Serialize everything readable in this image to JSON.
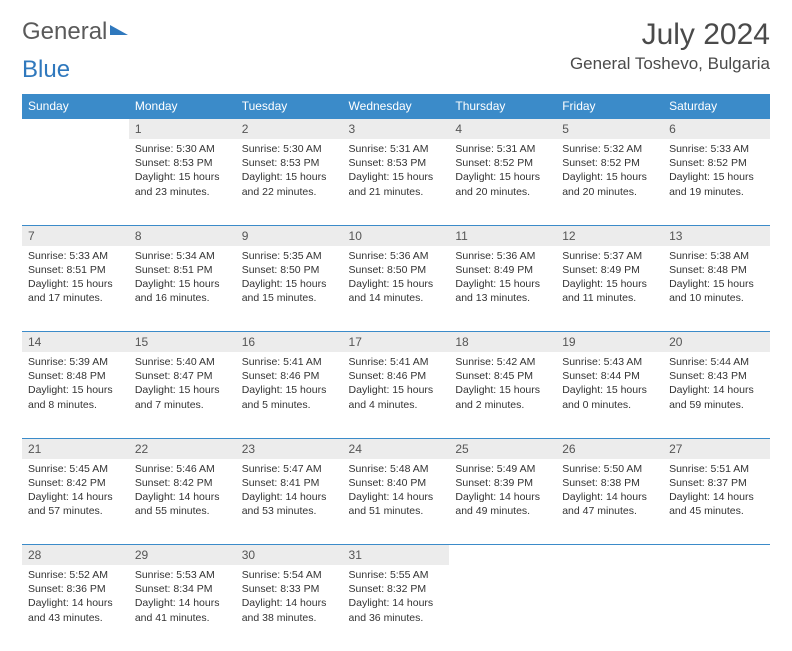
{
  "logo": {
    "text1": "General",
    "text2": "Blue"
  },
  "title": "July 2024",
  "location": "General Toshevo, Bulgaria",
  "colors": {
    "header_bg": "#3b8bc9",
    "header_text": "#ffffff",
    "daynum_bg": "#ececec",
    "border": "#3b8bc9"
  },
  "weekdays": [
    "Sunday",
    "Monday",
    "Tuesday",
    "Wednesday",
    "Thursday",
    "Friday",
    "Saturday"
  ],
  "weeks": [
    [
      null,
      {
        "d": "1",
        "sr": "5:30 AM",
        "ss": "8:53 PM",
        "dl": "15 hours and 23 minutes."
      },
      {
        "d": "2",
        "sr": "5:30 AM",
        "ss": "8:53 PM",
        "dl": "15 hours and 22 minutes."
      },
      {
        "d": "3",
        "sr": "5:31 AM",
        "ss": "8:53 PM",
        "dl": "15 hours and 21 minutes."
      },
      {
        "d": "4",
        "sr": "5:31 AM",
        "ss": "8:52 PM",
        "dl": "15 hours and 20 minutes."
      },
      {
        "d": "5",
        "sr": "5:32 AM",
        "ss": "8:52 PM",
        "dl": "15 hours and 20 minutes."
      },
      {
        "d": "6",
        "sr": "5:33 AM",
        "ss": "8:52 PM",
        "dl": "15 hours and 19 minutes."
      }
    ],
    [
      {
        "d": "7",
        "sr": "5:33 AM",
        "ss": "8:51 PM",
        "dl": "15 hours and 17 minutes."
      },
      {
        "d": "8",
        "sr": "5:34 AM",
        "ss": "8:51 PM",
        "dl": "15 hours and 16 minutes."
      },
      {
        "d": "9",
        "sr": "5:35 AM",
        "ss": "8:50 PM",
        "dl": "15 hours and 15 minutes."
      },
      {
        "d": "10",
        "sr": "5:36 AM",
        "ss": "8:50 PM",
        "dl": "15 hours and 14 minutes."
      },
      {
        "d": "11",
        "sr": "5:36 AM",
        "ss": "8:49 PM",
        "dl": "15 hours and 13 minutes."
      },
      {
        "d": "12",
        "sr": "5:37 AM",
        "ss": "8:49 PM",
        "dl": "15 hours and 11 minutes."
      },
      {
        "d": "13",
        "sr": "5:38 AM",
        "ss": "8:48 PM",
        "dl": "15 hours and 10 minutes."
      }
    ],
    [
      {
        "d": "14",
        "sr": "5:39 AM",
        "ss": "8:48 PM",
        "dl": "15 hours and 8 minutes."
      },
      {
        "d": "15",
        "sr": "5:40 AM",
        "ss": "8:47 PM",
        "dl": "15 hours and 7 minutes."
      },
      {
        "d": "16",
        "sr": "5:41 AM",
        "ss": "8:46 PM",
        "dl": "15 hours and 5 minutes."
      },
      {
        "d": "17",
        "sr": "5:41 AM",
        "ss": "8:46 PM",
        "dl": "15 hours and 4 minutes."
      },
      {
        "d": "18",
        "sr": "5:42 AM",
        "ss": "8:45 PM",
        "dl": "15 hours and 2 minutes."
      },
      {
        "d": "19",
        "sr": "5:43 AM",
        "ss": "8:44 PM",
        "dl": "15 hours and 0 minutes."
      },
      {
        "d": "20",
        "sr": "5:44 AM",
        "ss": "8:43 PM",
        "dl": "14 hours and 59 minutes."
      }
    ],
    [
      {
        "d": "21",
        "sr": "5:45 AM",
        "ss": "8:42 PM",
        "dl": "14 hours and 57 minutes."
      },
      {
        "d": "22",
        "sr": "5:46 AM",
        "ss": "8:42 PM",
        "dl": "14 hours and 55 minutes."
      },
      {
        "d": "23",
        "sr": "5:47 AM",
        "ss": "8:41 PM",
        "dl": "14 hours and 53 minutes."
      },
      {
        "d": "24",
        "sr": "5:48 AM",
        "ss": "8:40 PM",
        "dl": "14 hours and 51 minutes."
      },
      {
        "d": "25",
        "sr": "5:49 AM",
        "ss": "8:39 PM",
        "dl": "14 hours and 49 minutes."
      },
      {
        "d": "26",
        "sr": "5:50 AM",
        "ss": "8:38 PM",
        "dl": "14 hours and 47 minutes."
      },
      {
        "d": "27",
        "sr": "5:51 AM",
        "ss": "8:37 PM",
        "dl": "14 hours and 45 minutes."
      }
    ],
    [
      {
        "d": "28",
        "sr": "5:52 AM",
        "ss": "8:36 PM",
        "dl": "14 hours and 43 minutes."
      },
      {
        "d": "29",
        "sr": "5:53 AM",
        "ss": "8:34 PM",
        "dl": "14 hours and 41 minutes."
      },
      {
        "d": "30",
        "sr": "5:54 AM",
        "ss": "8:33 PM",
        "dl": "14 hours and 38 minutes."
      },
      {
        "d": "31",
        "sr": "5:55 AM",
        "ss": "8:32 PM",
        "dl": "14 hours and 36 minutes."
      },
      null,
      null,
      null
    ]
  ],
  "labels": {
    "sunrise": "Sunrise:",
    "sunset": "Sunset:",
    "daylight": "Daylight:"
  }
}
